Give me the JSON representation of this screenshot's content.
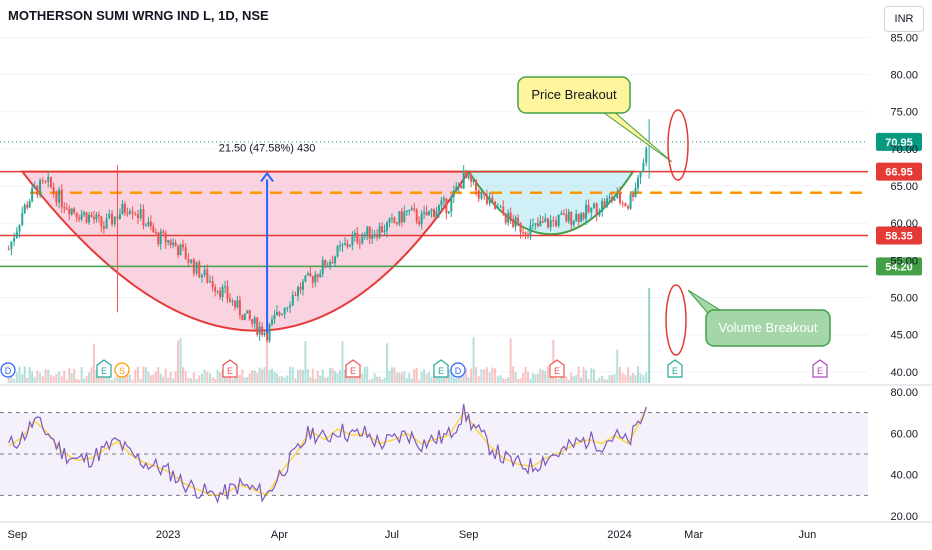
{
  "header": {
    "symbol_title": "MOTHERSON SUMI WRNG IND L, 1D, NSE",
    "currency_button": "INR"
  },
  "colors": {
    "up": "#26a69a",
    "down": "#ef5350",
    "cup_fill": "#f8bbd0",
    "handle_fill": "#b3e5f0",
    "resistance": "#e53935",
    "support": "#43a047",
    "dashed": "#ff9800",
    "rsi": "#7e57c2",
    "rsi_ma": "#fdd835",
    "arrow": "#2962ff"
  },
  "chart_data": [
    {
      "type": "candlestick",
      "title": "MOTHERSON SUMI WRNG IND L, 1D, NSE",
      "y_axis_ticks": [
        "40.00",
        "45.00",
        "50.00",
        "55.00",
        "60.00",
        "65.00",
        "70.00",
        "75.00",
        "80.00",
        "85.00"
      ],
      "x_axis_ticks": [
        "Sep",
        "2023",
        "Apr",
        "Jul",
        "Sep",
        "2024",
        "Mar",
        "Jun"
      ],
      "ylim": [
        38.5,
        86
      ],
      "x": [
        "2022-08-25",
        "2022-09-05",
        "2022-09-15",
        "2022-09-26",
        "2022-10-07",
        "2022-10-19",
        "2022-10-31",
        "2022-11-10",
        "2022-11-21",
        "2022-12-01",
        "2022-12-12",
        "2022-12-22",
        "2023-01-03",
        "2023-01-13",
        "2023-01-24",
        "2023-02-06",
        "2023-02-16",
        "2023-02-28",
        "2023-03-10",
        "2023-03-22",
        "2023-04-03",
        "2023-04-14",
        "2023-04-26",
        "2023-05-08",
        "2023-05-18",
        "2023-05-30",
        "2023-06-09",
        "2023-06-21",
        "2023-07-03",
        "2023-07-13",
        "2023-07-25",
        "2023-08-04",
        "2023-08-16",
        "2023-08-28",
        "2023-09-07",
        "2023-09-18",
        "2023-09-29",
        "2023-10-11",
        "2023-10-23",
        "2023-11-02",
        "2023-11-15",
        "2023-11-27",
        "2023-12-07",
        "2023-12-18",
        "2023-12-28",
        "2024-01-08",
        "2024-01-18",
        "2024-01-25"
      ],
      "close": [
        56.5,
        61.5,
        64.5,
        65.2,
        63.0,
        61.5,
        60.8,
        59.5,
        61.2,
        62.5,
        60.5,
        58.2,
        57.5,
        56.0,
        53.8,
        52.0,
        50.5,
        48.2,
        46.5,
        45.3,
        48.5,
        50.8,
        52.5,
        54.5,
        56.0,
        57.8,
        58.5,
        59.2,
        60.0,
        61.5,
        60.5,
        61.8,
        62.5,
        66.2,
        64.5,
        62.5,
        61.2,
        59.5,
        59.2,
        60.0,
        60.5,
        61.0,
        61.5,
        62.5,
        63.5,
        62.5,
        67.2,
        70.95
      ],
      "levels": [
        {
          "label": "66.95",
          "value": 66.95,
          "color": "#e53935"
        },
        {
          "label": "58.35",
          "value": 58.35,
          "color": "#e53935"
        },
        {
          "label": "54.20",
          "value": 54.2,
          "color": "#43a047"
        },
        {
          "label": "70.95",
          "value": 70.95,
          "color": "#089981",
          "dotted": true
        }
      ],
      "dashed_level": 64.1,
      "measure": {
        "label": "21.50 (47.58%) 430",
        "from": 45.2,
        "to": 66.7
      },
      "annotations": [
        {
          "label": "Price Breakout"
        },
        {
          "label": "Volume Breakout"
        }
      ],
      "events": [
        "D",
        "E",
        "S",
        "E",
        "E",
        "E",
        "D",
        "E",
        "E",
        "E"
      ]
    },
    {
      "type": "line",
      "title": "",
      "y_axis_ticks": [
        "20.00",
        "40.00",
        "60.00",
        "80.00"
      ],
      "ylim": [
        20,
        80
      ],
      "bands": [
        30,
        50,
        70
      ],
      "series": [
        {
          "values": [
            54,
            58,
            66,
            60,
            51,
            47,
            48,
            52,
            56,
            50,
            46,
            44,
            41,
            36,
            33,
            30,
            31,
            35,
            33,
            30,
            42,
            50,
            61,
            57,
            62,
            59,
            60,
            55,
            57,
            60,
            55,
            57,
            59,
            70,
            62,
            54,
            48,
            45,
            44,
            48,
            51,
            55,
            57,
            55,
            59,
            55,
            66,
            75
          ]
        }
      ]
    }
  ]
}
